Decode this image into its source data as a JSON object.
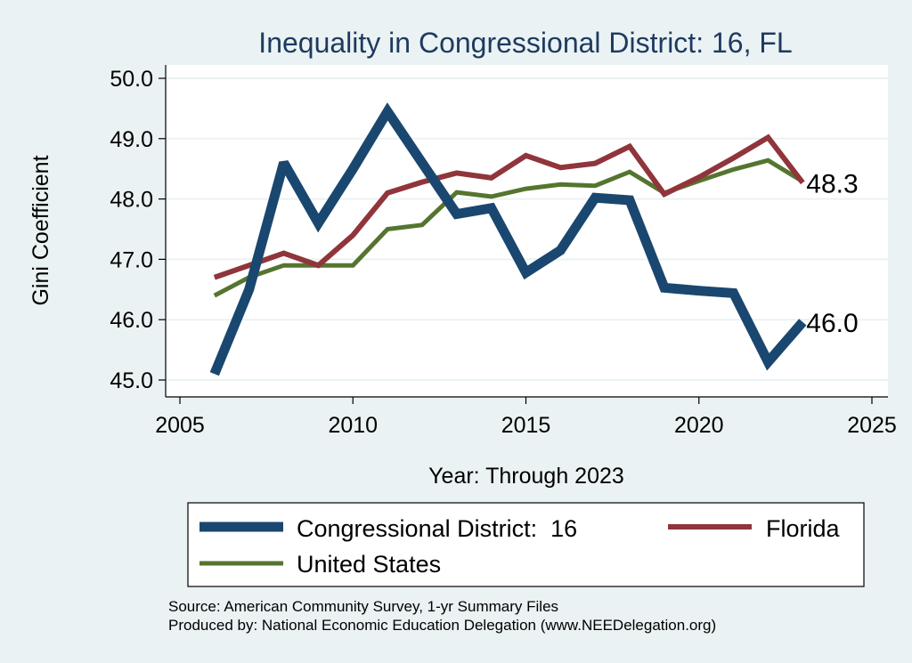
{
  "chart_data": {
    "type": "line",
    "title": "Inequality in Congressional District:  16, FL",
    "xlabel": "Year: Through 2023",
    "ylabel": "Gini Coefficient",
    "xlim": [
      2005,
      2025
    ],
    "ylim": [
      45.0,
      50.0
    ],
    "x_ticks": [
      "2005",
      "2010",
      "2015",
      "2020",
      "2025"
    ],
    "y_ticks": [
      "45.0",
      "46.0",
      "47.0",
      "48.0",
      "49.0",
      "50.0"
    ],
    "grid": "horizontal",
    "series": [
      {
        "name": "Congressional District:  16",
        "color": "#1a476f",
        "x": [
          2006,
          2007,
          2008,
          2009,
          2010,
          2011,
          2012,
          2013,
          2014,
          2015,
          2016,
          2017,
          2018,
          2019,
          2020,
          2021,
          2022,
          2023
        ],
        "values": [
          45.1,
          46.5,
          48.6,
          47.6,
          48.5,
          49.45,
          48.6,
          47.75,
          47.85,
          46.78,
          47.15,
          48.02,
          47.98,
          46.53,
          46.48,
          46.44,
          45.3,
          45.96
        ],
        "end_label": "46.0"
      },
      {
        "name": "Florida",
        "color": "#90353b",
        "x": [
          2006,
          2007,
          2008,
          2009,
          2010,
          2011,
          2012,
          2013,
          2014,
          2015,
          2016,
          2017,
          2018,
          2019,
          2020,
          2021,
          2022,
          2023
        ],
        "values": [
          46.7,
          46.9,
          47.1,
          46.9,
          47.4,
          48.1,
          48.28,
          48.43,
          48.35,
          48.72,
          48.52,
          48.59,
          48.87,
          48.08,
          48.36,
          48.68,
          49.02,
          48.27
        ],
        "end_label": "48.3"
      },
      {
        "name": "United States",
        "color": "#55752f",
        "x": [
          2006,
          2007,
          2008,
          2009,
          2010,
          2011,
          2012,
          2013,
          2014,
          2015,
          2016,
          2017,
          2018,
          2019,
          2020,
          2021,
          2022,
          2023
        ],
        "values": [
          46.4,
          46.7,
          46.9,
          46.9,
          46.9,
          47.5,
          47.57,
          48.11,
          48.04,
          48.17,
          48.24,
          48.22,
          48.45,
          48.1,
          48.3,
          48.49,
          48.64,
          48.29
        ]
      }
    ],
    "legend_position": "bottom",
    "source": "Source: American Community Survey, 1-yr Summary Files",
    "producer": "Produced by: National Economic Education Delegation (www.NEEDelegation.org)"
  }
}
